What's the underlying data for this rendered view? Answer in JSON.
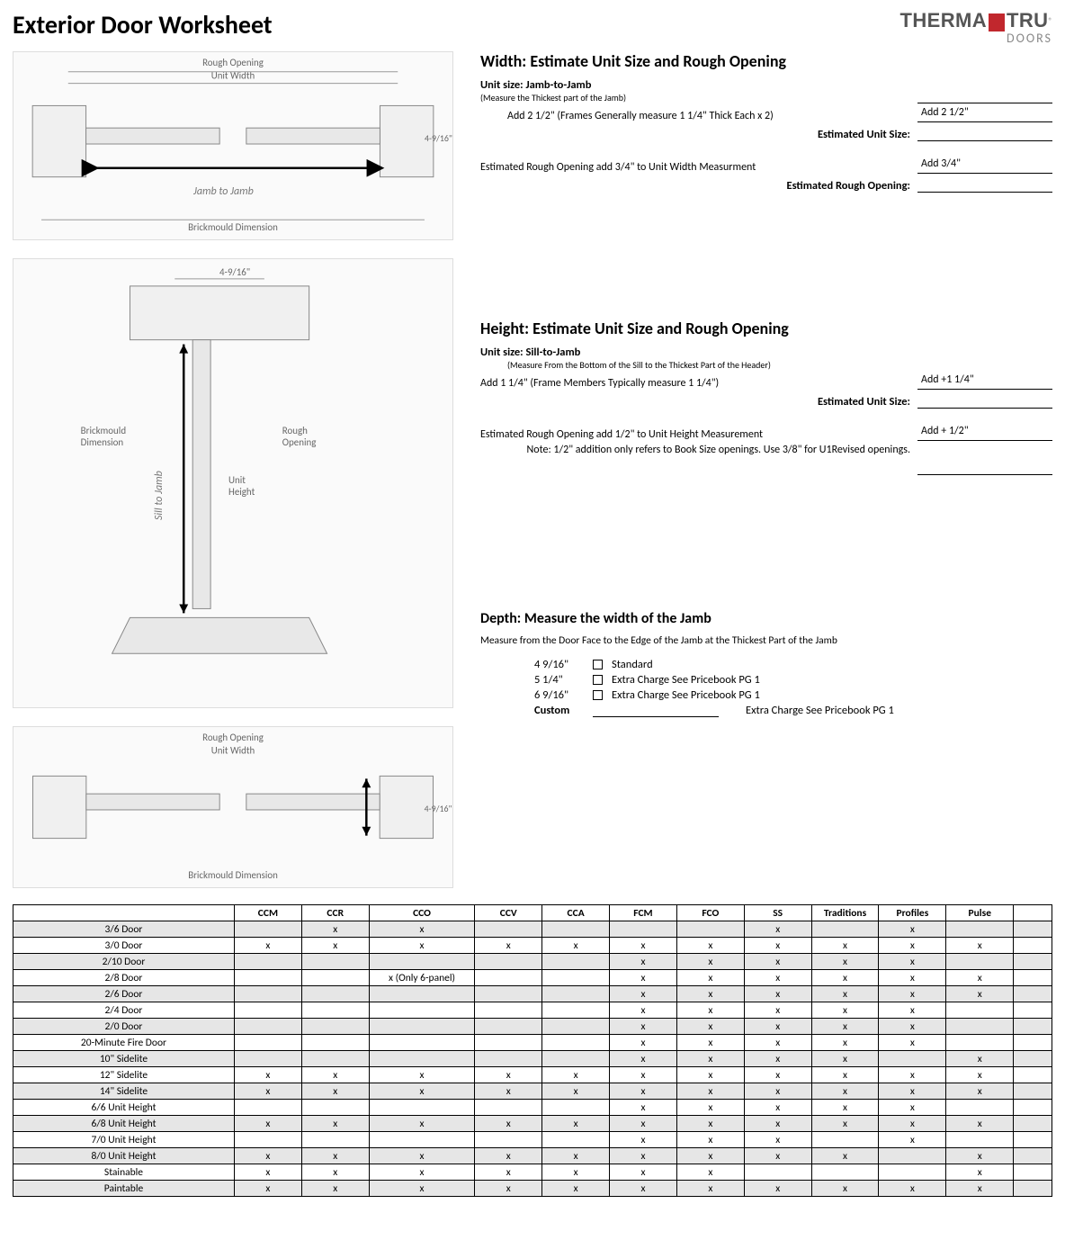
{
  "title": "Exterior Door Worksheet",
  "brand": {
    "part1": "THERMA",
    "part2": "TRU",
    "sub": "DOORS"
  },
  "diagrams": {
    "top_label": "Jamb to Jamb",
    "side_label": "Sill to Jamb"
  },
  "width_section": {
    "heading": "Width:  Estimate Unit Size and Rough Opening",
    "unit_label": "Unit size: Jamb-to-Jamb",
    "unit_sub": "(Measure the Thickest part of the Jamb)",
    "add_line": "Add 2 1/2\" (Frames  Generally measure 1 1/4\" Thick Each x 2)",
    "add_value": "Add     2 1/2\"",
    "est_unit": "Estimated Unit Size:",
    "rough_line": "Estimated Rough Opening add 3/4\" to Unit Width Measurment",
    "rough_value": "Add        3/4\"",
    "est_rough": "Estimated Rough Opening:"
  },
  "height_section": {
    "heading": "Height:  Estimate Unit Size and Rough Opening",
    "unit_label": "Unit size: Sill-to-Jamb",
    "unit_sub": "(Measure From the Bottom of the Sill to the Thickest Part of the Header)",
    "add_line": "Add 1 1/4\" (Frame Members Typically measure 1 1/4\")",
    "add_value": "Add     +1 1/4\"",
    "est_unit": "Estimated Unit Size:",
    "rough_line": "Estimated Rough Opening add 1/2\" to Unit Height Measurement",
    "rough_value": "Add       + 1/2\"",
    "note": "Note: 1/2\" addition only refers to Book Size openings. Use 3/8\" for U1Revised openings."
  },
  "depth_section": {
    "heading": "Depth:  Measure the width of the Jamb",
    "sub": "Measure from the Door Face to the Edge of the Jamb at the Thickest Part of the Jamb",
    "rows": [
      {
        "dim": "4 9/16\"",
        "text": "Standard"
      },
      {
        "dim": "5 1/4\"",
        "text": "Extra Charge See Pricebook PG 1"
      },
      {
        "dim": "6 9/16\"",
        "text": "Extra Charge See Pricebook PG 1"
      }
    ],
    "custom_label": "Custom",
    "custom_text": "Extra Charge See Pricebook PG 1"
  },
  "table": {
    "columns": [
      "",
      "CCM",
      "CCR",
      "CCO",
      "CCV",
      "CCA",
      "FCM",
      "FCO",
      "SS",
      "Traditions",
      "Profiles",
      "Pulse",
      ""
    ],
    "rows": [
      {
        "shade": true,
        "cells": [
          "3/6 Door",
          "",
          "x",
          "x",
          "",
          "",
          "",
          "",
          "x",
          "",
          "x",
          "",
          ""
        ]
      },
      {
        "shade": false,
        "cells": [
          "3/0 Door",
          "x",
          "x",
          "x",
          "x",
          "x",
          "x",
          "x",
          "x",
          "x",
          "x",
          "x",
          ""
        ]
      },
      {
        "shade": true,
        "cells": [
          "2/10 Door",
          "",
          "",
          "",
          "",
          "",
          "x",
          "x",
          "x",
          "x",
          "x",
          "",
          ""
        ]
      },
      {
        "shade": false,
        "cells": [
          "2/8 Door",
          "",
          "",
          "x (Only 6-panel)",
          "",
          "",
          "x",
          "x",
          "x",
          "x",
          "x",
          "x",
          ""
        ]
      },
      {
        "shade": true,
        "cells": [
          "2/6 Door",
          "",
          "",
          "",
          "",
          "",
          "x",
          "x",
          "x",
          "x",
          "x",
          "x",
          ""
        ]
      },
      {
        "shade": false,
        "cells": [
          "2/4 Door",
          "",
          "",
          "",
          "",
          "",
          "x",
          "x",
          "x",
          "x",
          "x",
          "",
          ""
        ]
      },
      {
        "shade": true,
        "cells": [
          "2/0 Door",
          "",
          "",
          "",
          "",
          "",
          "x",
          "x",
          "x",
          "x",
          "x",
          "",
          ""
        ]
      },
      {
        "shade": false,
        "cells": [
          "20-Minute Fire Door",
          "",
          "",
          "",
          "",
          "",
          "x",
          "x",
          "x",
          "x",
          "x",
          "",
          ""
        ]
      },
      {
        "shade": true,
        "cells": [
          "10\" Sidelite",
          "",
          "",
          "",
          "",
          "",
          "x",
          "x",
          "x",
          "x",
          "",
          "x",
          ""
        ]
      },
      {
        "shade": false,
        "cells": [
          "12\" Sidelite",
          "x",
          "x",
          "x",
          "x",
          "x",
          "x",
          "x",
          "x",
          "x",
          "x",
          "x",
          ""
        ]
      },
      {
        "shade": true,
        "cells": [
          "14\" Sidelite",
          "x",
          "x",
          "x",
          "x",
          "x",
          "x",
          "x",
          "x",
          "x",
          "x",
          "x",
          ""
        ]
      },
      {
        "shade": false,
        "cells": [
          "6/6 Unit Height",
          "",
          "",
          "",
          "",
          "",
          "x",
          "x",
          "x",
          "x",
          "x",
          "",
          ""
        ]
      },
      {
        "shade": true,
        "cells": [
          "6/8 Unit Height",
          "x",
          "x",
          "x",
          "x",
          "x",
          "x",
          "x",
          "x",
          "x",
          "x",
          "x",
          ""
        ]
      },
      {
        "shade": false,
        "cells": [
          "7/0 Unit Height",
          "",
          "",
          "",
          "",
          "",
          "x",
          "x",
          "x",
          "",
          "x",
          "",
          ""
        ]
      },
      {
        "shade": true,
        "cells": [
          "8/0 Unit Height",
          "x",
          "x",
          "x",
          "x",
          "x",
          "x",
          "x",
          "x",
          "x",
          "",
          "x",
          ""
        ]
      },
      {
        "shade": false,
        "cells": [
          "Stainable",
          "x",
          "x",
          "x",
          "x",
          "x",
          "x",
          "x",
          "",
          "",
          "",
          "x",
          ""
        ]
      },
      {
        "shade": true,
        "cells": [
          "Paintable",
          "x",
          "x",
          "x",
          "x",
          "x",
          "x",
          "x",
          "x",
          "x",
          "x",
          "x",
          ""
        ]
      }
    ]
  }
}
